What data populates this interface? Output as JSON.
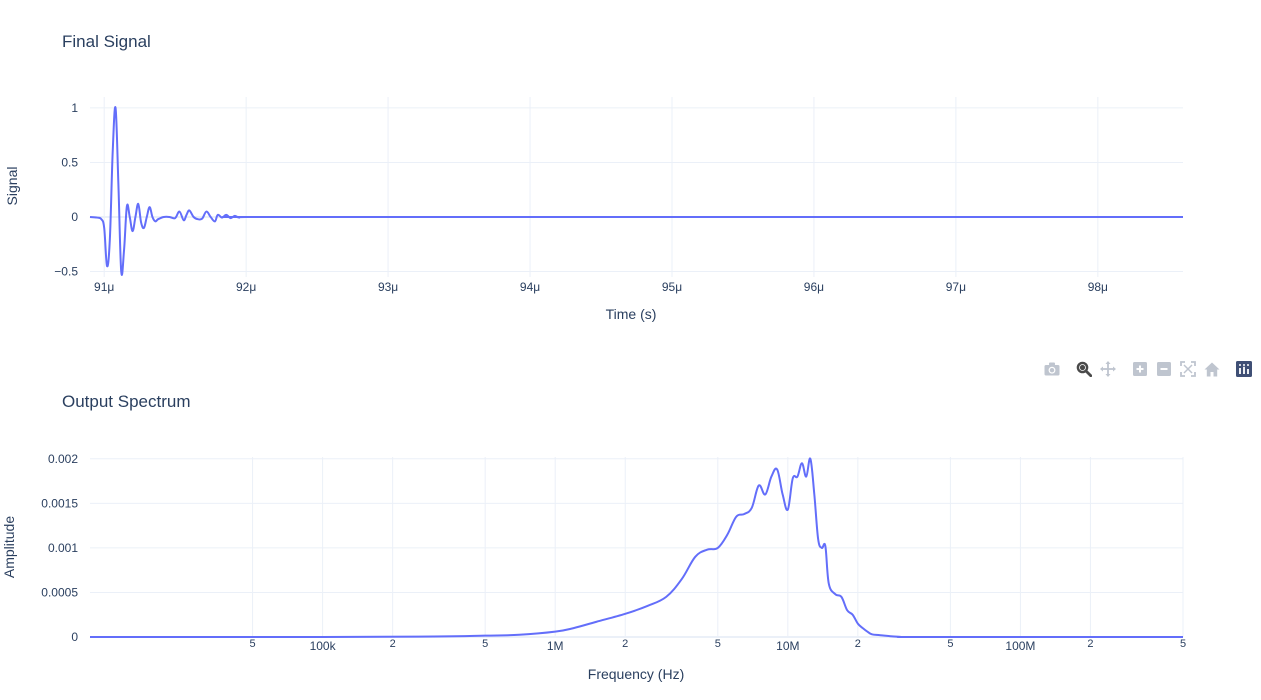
{
  "colors": {
    "trace": "#636efa",
    "text": "#2a3f5f",
    "grid": "#ebf0f8",
    "modebar_icon": "#bfc5cf",
    "modebar_active": "#4a4a4a",
    "plotly_logo": "#3f4f75"
  },
  "modebar": {
    "buttons": [
      "camera-icon",
      "zoom-icon",
      "pan-icon",
      "zoom-in-icon",
      "zoom-out-icon",
      "autoscale-icon",
      "reset-axes-icon",
      "plotly-logo-icon"
    ]
  },
  "chart_data": [
    {
      "type": "line",
      "title": "Final Signal",
      "xlabel": "Time (s)",
      "ylabel": "Signal",
      "xlim": [
        9.09e-05,
        9.86e-05
      ],
      "ylim": [
        -0.55,
        1.1
      ],
      "grid": true,
      "x_ticks": [
        9.1e-05,
        9.2e-05,
        9.3e-05,
        9.4e-05,
        9.5e-05,
        9.6e-05,
        9.7e-05,
        9.8e-05
      ],
      "x_tick_labels": [
        "91μ",
        "92μ",
        "93μ",
        "94μ",
        "95μ",
        "96μ",
        "97μ",
        "98μ"
      ],
      "y_ticks": [
        -0.5,
        0,
        0.5,
        1
      ],
      "y_tick_labels": [
        "−0.5",
        "0",
        "0.5",
        "1"
      ],
      "series": [
        {
          "name": "signal",
          "x": [
            9.09e-05,
            9.095e-05,
            9.098e-05,
            9.1e-05,
            9.102e-05,
            9.104e-05,
            9.106e-05,
            9.108e-05,
            9.11e-05,
            9.112e-05,
            9.114e-05,
            9.116e-05,
            9.118e-05,
            9.12e-05,
            9.122e-05,
            9.124e-05,
            9.126e-05,
            9.128e-05,
            9.13e-05,
            9.132e-05,
            9.134e-05,
            9.136e-05,
            9.138e-05,
            9.142e-05,
            9.146e-05,
            9.15e-05,
            9.153e-05,
            9.156e-05,
            9.158e-05,
            9.16e-05,
            9.163e-05,
            9.166e-05,
            9.169e-05,
            9.172e-05,
            9.175e-05,
            9.178e-05,
            9.18e-05,
            9.183e-05,
            9.186e-05,
            9.189e-05,
            9.192e-05,
            9.195e-05,
            9.2e-05,
            9.25e-05,
            9.86e-05
          ],
          "values": [
            0.0,
            -0.005,
            -0.02,
            -0.1,
            -0.45,
            -0.2,
            0.6,
            1.0,
            0.3,
            -0.5,
            -0.3,
            0.1,
            0.0,
            -0.13,
            0.0,
            0.12,
            -0.05,
            -0.1,
            0.0,
            0.09,
            0.0,
            -0.04,
            -0.02,
            0.0,
            0.0,
            -0.01,
            0.05,
            -0.03,
            0.02,
            0.06,
            0.0,
            -0.02,
            -0.015,
            0.05,
            0.0,
            -0.04,
            0.02,
            -0.005,
            0.02,
            -0.01,
            0.01,
            -0.005,
            0.0,
            0.0,
            0.0
          ]
        }
      ]
    },
    {
      "type": "line",
      "title": "Output Spectrum",
      "xlabel": "Frequency (Hz)",
      "ylabel": "Amplitude",
      "x_scale": "log",
      "xlim": [
        10000,
        500000000
      ],
      "ylim": [
        0,
        0.00202
      ],
      "grid": true,
      "x_ticks": [
        50000,
        100000,
        200000,
        500000,
        1000000,
        2000000,
        5000000,
        10000000,
        20000000,
        50000000,
        100000000,
        200000000,
        500000000
      ],
      "x_tick_labels": [
        "5",
        "100k",
        "2",
        "5",
        "1M",
        "2",
        "5",
        "10M",
        "2",
        "5",
        "100M",
        "2",
        "5"
      ],
      "x_tick_major": [
        false,
        true,
        false,
        false,
        true,
        false,
        false,
        true,
        false,
        false,
        true,
        false,
        false
      ],
      "y_ticks": [
        0,
        0.0005,
        0.001,
        0.0015,
        0.002
      ],
      "y_tick_labels": [
        "0",
        "0.0005",
        "0.001",
        "0.0015",
        "0.002"
      ],
      "series": [
        {
          "name": "spectrum",
          "x": [
            10000,
            100000,
            300000,
            500000,
            700000,
            1000000,
            1200000,
            1500000,
            2000000,
            2500000,
            3000000,
            3500000,
            4000000,
            4500000,
            5000000,
            5500000,
            6000000,
            6500000,
            7000000,
            7500000,
            8000000,
            8500000,
            9000000,
            9500000,
            10000000,
            10500000,
            11000000,
            11500000,
            12000000,
            12500000,
            13000000,
            13500000,
            14000000,
            14500000,
            15000000,
            16000000,
            17000000,
            18000000,
            19000000,
            20000000,
            21000000,
            22000000,
            23000000,
            25000000,
            30000000,
            40000000,
            500000000
          ],
          "values": [
            0,
            0,
            5e-06,
            1.5e-05,
            2.5e-05,
            6e-05,
            0.0001,
            0.00017,
            0.00026,
            0.00035,
            0.00045,
            0.00065,
            0.0009,
            0.00098,
            0.001,
            0.00115,
            0.00135,
            0.00138,
            0.00145,
            0.0017,
            0.0016,
            0.0018,
            0.00188,
            0.0016,
            0.00143,
            0.00178,
            0.0018,
            0.00195,
            0.0018,
            0.002,
            0.0016,
            0.0011,
            0.001,
            0.00102,
            0.0006,
            0.00048,
            0.00045,
            0.0003,
            0.00025,
            0.00015,
            0.0001,
            6e-05,
            3e-05,
            2e-05,
            3e-06,
            0,
            0
          ]
        }
      ]
    }
  ]
}
